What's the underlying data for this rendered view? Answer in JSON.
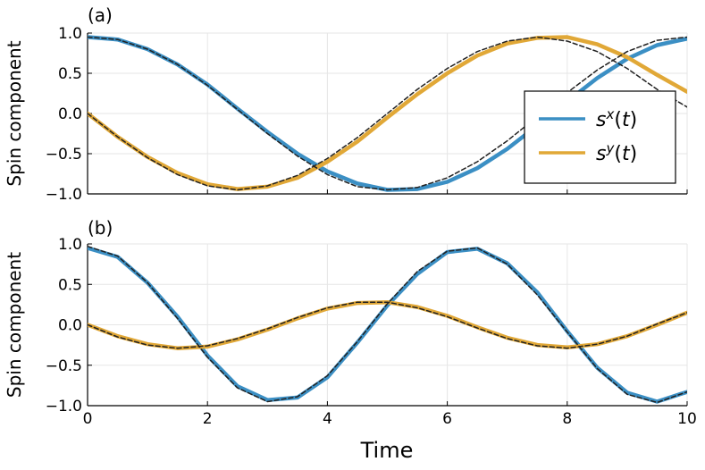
{
  "chart_data": [
    {
      "type": "line",
      "panel_label": "(a)",
      "xlabel": "",
      "ylabel": "Spin component",
      "xlim": [
        0,
        10
      ],
      "ylim": [
        -1.0,
        1.0
      ],
      "x_ticks": [
        0,
        2,
        4,
        6,
        8,
        10
      ],
      "x_tick_labels_shown": false,
      "y_ticks": [
        -1.0,
        -0.5,
        0.0,
        0.5,
        1.0
      ],
      "y_tick_labels": [
        "−1.0",
        "−0.5",
        "0.0",
        "0.5",
        "1.0"
      ],
      "grid": true,
      "legend": {
        "position": "right",
        "entries": [
          "s^x(t)",
          "s^y(t)"
        ]
      },
      "x": [
        0,
        0.5,
        1,
        1.5,
        2,
        2.5,
        3,
        3.5,
        4,
        4.5,
        5,
        5.5,
        6,
        6.5,
        7,
        7.5,
        8,
        8.5,
        9,
        9.5,
        10
      ],
      "series": [
        {
          "name": "sx(t)",
          "color": "#3b8fc4",
          "style": "solid",
          "values": [
            0.95,
            0.92,
            0.8,
            0.61,
            0.36,
            0.06,
            -0.23,
            -0.5,
            -0.72,
            -0.87,
            -0.95,
            -0.94,
            -0.85,
            -0.68,
            -0.44,
            -0.15,
            0.15,
            0.44,
            0.68,
            0.85,
            0.93
          ]
        },
        {
          "name": "sy(t)",
          "color": "#e1a837",
          "style": "solid",
          "values": [
            0.0,
            -0.29,
            -0.54,
            -0.74,
            -0.88,
            -0.94,
            -0.91,
            -0.8,
            -0.6,
            -0.35,
            -0.05,
            0.24,
            0.5,
            0.72,
            0.87,
            0.94,
            0.95,
            0.86,
            0.7,
            0.48,
            0.27
          ]
        },
        {
          "name": "",
          "color": "#222222",
          "style": "dashed",
          "values": [
            0.95,
            0.92,
            0.8,
            0.61,
            0.35,
            0.05,
            -0.25,
            -0.53,
            -0.76,
            -0.91,
            -0.95,
            -0.92,
            -0.8,
            -0.6,
            -0.34,
            -0.04,
            0.26,
            0.54,
            0.77,
            0.91,
            0.95
          ]
        },
        {
          "name": "",
          "color": "#222222",
          "style": "dashed",
          "values": [
            0.0,
            -0.29,
            -0.55,
            -0.76,
            -0.9,
            -0.95,
            -0.9,
            -0.77,
            -0.56,
            -0.3,
            0.0,
            0.3,
            0.56,
            0.77,
            0.9,
            0.95,
            0.9,
            0.77,
            0.56,
            0.3,
            0.08
          ]
        }
      ]
    },
    {
      "type": "line",
      "panel_label": "(b)",
      "xlabel": "Time",
      "ylabel": "Spin component",
      "xlim": [
        0,
        10
      ],
      "ylim": [
        -1.0,
        1.0
      ],
      "x_ticks": [
        0,
        2,
        4,
        6,
        8,
        10
      ],
      "x_tick_labels": [
        "0",
        "2",
        "4",
        "6",
        "8",
        "10"
      ],
      "y_ticks": [
        -1.0,
        -0.5,
        0.0,
        0.5,
        1.0
      ],
      "y_tick_labels": [
        "−1.0",
        "−0.5",
        "0.0",
        "0.5",
        "1.0"
      ],
      "grid": true,
      "x": [
        0,
        0.5,
        1,
        1.5,
        2,
        2.5,
        3,
        3.5,
        4,
        4.5,
        5,
        5.5,
        6,
        6.5,
        7,
        7.5,
        8,
        8.5,
        9,
        9.5,
        10
      ],
      "series": [
        {
          "name": "sx(t)",
          "color": "#3b8fc4",
          "style": "solid",
          "values": [
            0.95,
            0.84,
            0.52,
            0.1,
            -0.38,
            -0.76,
            -0.93,
            -0.9,
            -0.65,
            -0.22,
            0.24,
            0.63,
            0.9,
            0.94,
            0.76,
            0.4,
            -0.08,
            -0.53,
            -0.84,
            -0.95,
            -0.83
          ]
        },
        {
          "name": "sy(t)",
          "color": "#e1a837",
          "style": "solid",
          "values": [
            0.0,
            -0.14,
            -0.24,
            -0.29,
            -0.27,
            -0.18,
            -0.06,
            0.08,
            0.2,
            0.27,
            0.28,
            0.22,
            0.11,
            -0.03,
            -0.16,
            -0.25,
            -0.28,
            -0.24,
            -0.14,
            0.0,
            0.15
          ]
        },
        {
          "name": "",
          "color": "#222222",
          "style": "dashed",
          "values": [
            0.97,
            0.85,
            0.52,
            0.08,
            -0.4,
            -0.78,
            -0.95,
            -0.89,
            -0.63,
            -0.21,
            0.26,
            0.66,
            0.91,
            0.95,
            0.75,
            0.37,
            -0.09,
            -0.54,
            -0.86,
            -0.96,
            -0.83
          ]
        },
        {
          "name": "",
          "color": "#222222",
          "style": "dashed",
          "values": [
            0.0,
            -0.15,
            -0.25,
            -0.29,
            -0.26,
            -0.17,
            -0.05,
            0.09,
            0.21,
            0.28,
            0.28,
            0.21,
            0.1,
            -0.04,
            -0.17,
            -0.26,
            -0.29,
            -0.24,
            -0.14,
            0.01,
            0.15
          ]
        }
      ]
    }
  ]
}
